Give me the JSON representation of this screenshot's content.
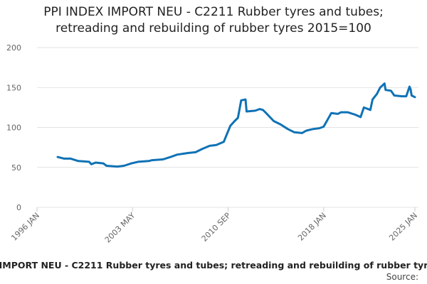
{
  "chart_data": {
    "type": "line",
    "title": [
      "PPI INDEX IMPORT NEU - C2211 Rubber tyres and tubes;",
      "retreading and rebuilding of rubber tyres 2015=100"
    ],
    "footer": "IMPORT NEU - C2211 Rubber tyres and tubes; retreading and rebuilding of rubber tyr",
    "source": "Source:",
    "color": "#0f72b5",
    "grid": true,
    "ylim": [
      0,
      200
    ],
    "yticks": [
      0,
      50,
      100,
      150,
      200
    ],
    "xlim": [
      "1996 JAN",
      "2025 JAN"
    ],
    "xticks": [
      "1996 JAN",
      "2003 MAY",
      "2010 SEP",
      "2018 JAN",
      "2025 JAN"
    ],
    "x": [
      "1997 AUG",
      "1998 FEB",
      "1998 AUG",
      "1999 MAR",
      "2000 JAN",
      "2000 MAR",
      "2000 JUL",
      "2001 FEB",
      "2001 MAY",
      "2002 MAR",
      "2002 SEP",
      "2003 APR",
      "2003 OCT",
      "2004 AUG",
      "2004 NOV",
      "2005 SEP",
      "2006 APR",
      "2006 OCT",
      "2007 AUG",
      "2008 MAR",
      "2008 SEP",
      "2009 APR",
      "2009 OCT",
      "2010 MAY",
      "2010 AUG",
      "2010 NOV",
      "2011 MAR",
      "2011 JUN",
      "2011 SEP",
      "2012 JAN",
      "2012 FEB",
      "2012 OCT",
      "2013 FEB",
      "2013 MAY",
      "2013 AUG",
      "2014 MAR",
      "2014 SEP",
      "2015 APR",
      "2015 OCT",
      "2016 MAY",
      "2016 SEP",
      "2017 MAR",
      "2017 SEP",
      "2018 JAN",
      "2018 AUG",
      "2019 FEB",
      "2019 MAY",
      "2019 NOV",
      "2020 JUN",
      "2020 NOV",
      "2021 FEB",
      "2021 AUG",
      "2021 OCT",
      "2022 FEB",
      "2022 MAY",
      "2022 SEP",
      "2022 OCT",
      "2023 MAR",
      "2023 JUN",
      "2024 JAN",
      "2024 MAY",
      "2024 AUG",
      "2024 SEP",
      "2024 OCT",
      "2025 JAN"
    ],
    "values": [
      63,
      61,
      61,
      58,
      57,
      54,
      56,
      55,
      52,
      51,
      52,
      55,
      57,
      58,
      59,
      60,
      63,
      66,
      68,
      69,
      73,
      77,
      78,
      82,
      92,
      102,
      108,
      112,
      134,
      135,
      120,
      121,
      123,
      122,
      118,
      108,
      104,
      98,
      94,
      93,
      96,
      98,
      99,
      101,
      118,
      117,
      119,
      119,
      116,
      113,
      125,
      122,
      135,
      142,
      150,
      155,
      147,
      146,
      140,
      139,
      139,
      151,
      148,
      140,
      138
    ]
  }
}
